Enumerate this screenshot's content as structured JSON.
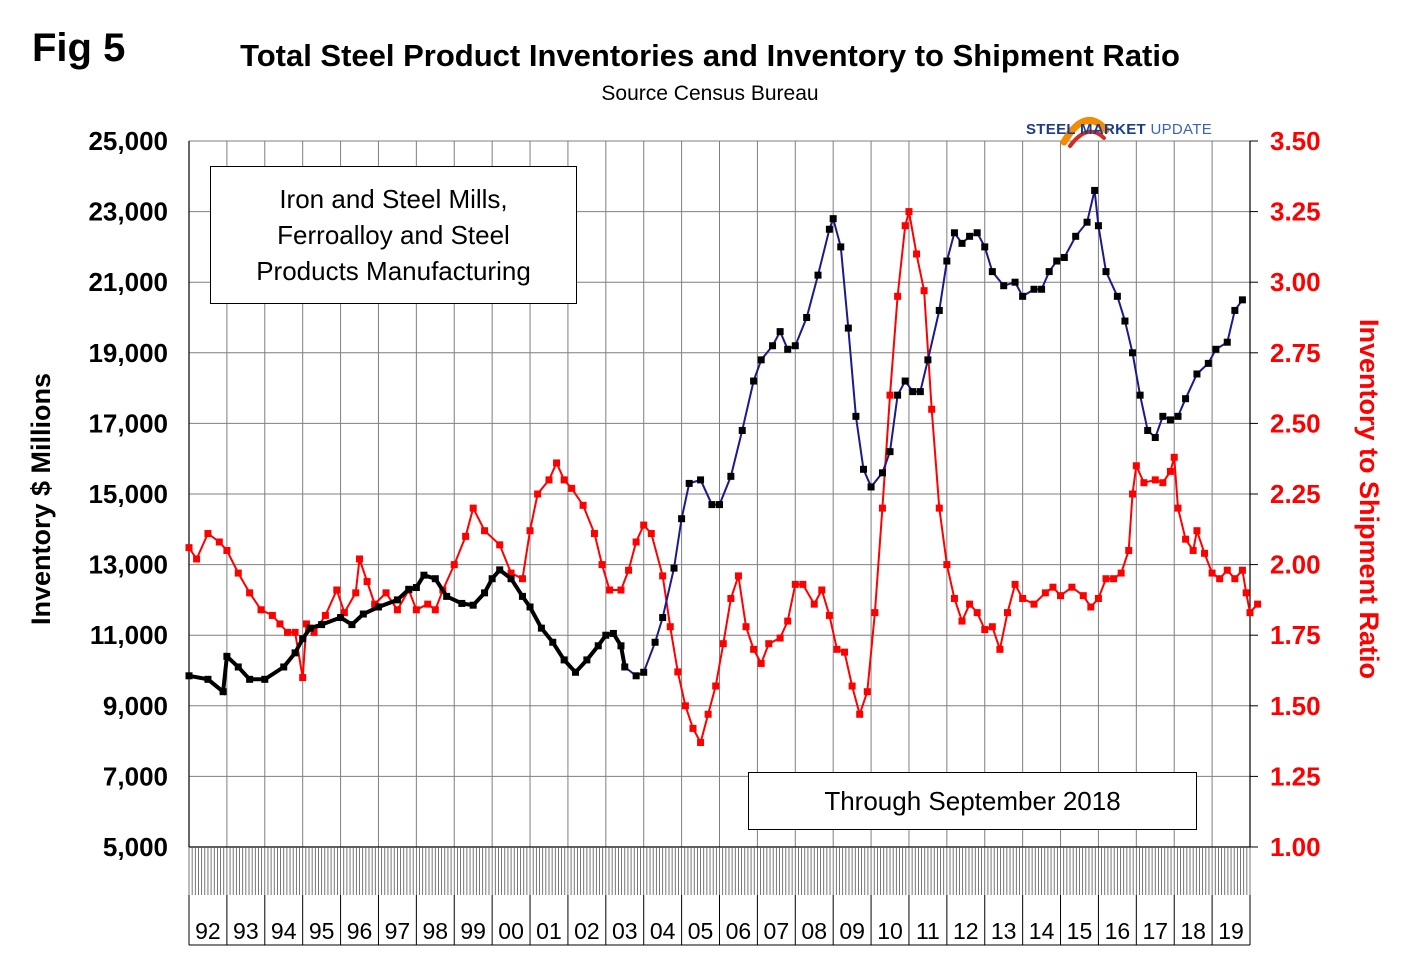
{
  "header": {
    "fig_label": "Fig 5",
    "title": "Total Steel Product Inventories and Inventory to Shipment Ratio",
    "subtitle": "Source Census Bureau",
    "logo_bold": "STEEL MARKET",
    "logo_light": "UPDATE"
  },
  "notes": {
    "description_lines": [
      "Iron and Steel Mills,",
      "Ferroalloy and Steel",
      "Products Manufacturing"
    ],
    "through": "Through September 2018"
  },
  "colors": {
    "inventory_early": "#000000",
    "inventory_late": "#000000",
    "inventory_line_late": "#1a1a8c",
    "ratio": "#ff0000",
    "grid": "#7f7f7f"
  },
  "chart_data": {
    "type": "line",
    "title": "Total Steel Product Inventories and Inventory to Shipment Ratio",
    "subtitle": "Source Census Bureau",
    "xlabel": "",
    "x_tick_labels": [
      "92",
      "93",
      "94",
      "95",
      "96",
      "97",
      "98",
      "99",
      "00",
      "01",
      "02",
      "03",
      "04",
      "05",
      "06",
      "07",
      "08",
      "09",
      "10",
      "11",
      "12",
      "13",
      "14",
      "15",
      "16",
      "17",
      "18",
      "19"
    ],
    "x_range": [
      1992.0,
      2020.0
    ],
    "y_left": {
      "label": "Inventory $ Millions",
      "range": [
        5000,
        25000
      ],
      "ticks": [
        5000,
        7000,
        9000,
        11000,
        13000,
        15000,
        17000,
        19000,
        21000,
        23000,
        25000
      ],
      "tick_labels": [
        "5,000",
        "7,000",
        "9,000",
        "11,000",
        "13,000",
        "15,000",
        "17,000",
        "19,000",
        "21,000",
        "23,000",
        "25,000"
      ]
    },
    "y_right": {
      "label": "Inventory to Shipment Ratio",
      "range": [
        1.0,
        3.5
      ],
      "ticks": [
        1.0,
        1.25,
        1.5,
        1.75,
        2.0,
        2.25,
        2.5,
        2.75,
        3.0,
        3.25,
        3.5
      ],
      "tick_labels": [
        "1.00",
        "1.25",
        "1.50",
        "1.75",
        "2.00",
        "2.25",
        "2.50",
        "2.75",
        "3.00",
        "3.25",
        "3.50"
      ]
    },
    "grid": true,
    "series": [
      {
        "axis": "left",
        "marker": "square",
        "points": [
          [
            1992.0,
            9850
          ],
          [
            1992.5,
            9750
          ],
          [
            1992.9,
            9400
          ],
          [
            1993.0,
            10400
          ],
          [
            1993.3,
            10100
          ],
          [
            1993.6,
            9750
          ],
          [
            1994.0,
            9750
          ],
          [
            1994.5,
            10100
          ],
          [
            1994.8,
            10500
          ],
          [
            1995.0,
            10900
          ],
          [
            1995.2,
            11200
          ],
          [
            1995.5,
            11300
          ],
          [
            1996.0,
            11500
          ],
          [
            1996.3,
            11300
          ],
          [
            1996.6,
            11600
          ],
          [
            1997.0,
            11800
          ],
          [
            1997.5,
            12000
          ],
          [
            1997.8,
            12300
          ],
          [
            1998.0,
            12350
          ],
          [
            1998.2,
            12700
          ],
          [
            1998.5,
            12600
          ],
          [
            1998.8,
            12100
          ],
          [
            1999.2,
            11900
          ],
          [
            1999.5,
            11850
          ],
          [
            1999.8,
            12200
          ],
          [
            2000.0,
            12600
          ],
          [
            2000.2,
            12850
          ],
          [
            2000.5,
            12600
          ],
          [
            2000.8,
            12100
          ],
          [
            2001.0,
            11800
          ],
          [
            2001.3,
            11200
          ],
          [
            2001.6,
            10800
          ],
          [
            2001.9,
            10300
          ],
          [
            2002.2,
            9950
          ],
          [
            2002.5,
            10300
          ],
          [
            2002.8,
            10700
          ],
          [
            2003.0,
            11000
          ],
          [
            2003.2,
            11050
          ],
          [
            2003.4,
            10700
          ],
          [
            2003.5,
            10100
          ],
          [
            2003.8,
            9850
          ],
          [
            2004.0,
            9950
          ],
          [
            2004.3,
            10800
          ],
          [
            2004.5,
            11500
          ],
          [
            2004.8,
            12900
          ],
          [
            2005.0,
            14300
          ],
          [
            2005.2,
            15300
          ],
          [
            2005.5,
            15400
          ],
          [
            2005.8,
            14700
          ],
          [
            2006.0,
            14700
          ],
          [
            2006.3,
            15500
          ],
          [
            2006.6,
            16800
          ],
          [
            2006.9,
            18200
          ],
          [
            2007.1,
            18800
          ],
          [
            2007.4,
            19200
          ],
          [
            2007.6,
            19600
          ],
          [
            2007.8,
            19100
          ],
          [
            2008.0,
            19200
          ],
          [
            2008.3,
            20000
          ],
          [
            2008.6,
            21200
          ],
          [
            2008.9,
            22500
          ],
          [
            2009.0,
            22800
          ],
          [
            2009.2,
            22000
          ],
          [
            2009.4,
            19700
          ],
          [
            2009.6,
            17200
          ],
          [
            2009.8,
            15700
          ],
          [
            2010.0,
            15200
          ],
          [
            2010.3,
            15600
          ],
          [
            2010.5,
            16200
          ],
          [
            2010.7,
            17800
          ],
          [
            2010.9,
            18200
          ],
          [
            2011.1,
            17900
          ],
          [
            2011.3,
            17900
          ],
          [
            2011.5,
            18800
          ],
          [
            2011.8,
            20200
          ],
          [
            2012.0,
            21600
          ],
          [
            2012.2,
            22400
          ],
          [
            2012.4,
            22100
          ],
          [
            2012.6,
            22300
          ],
          [
            2012.8,
            22400
          ],
          [
            2013.0,
            22000
          ],
          [
            2013.2,
            21300
          ],
          [
            2013.5,
            20900
          ],
          [
            2013.8,
            21000
          ],
          [
            2014.0,
            20600
          ],
          [
            2014.3,
            20800
          ],
          [
            2014.5,
            20800
          ],
          [
            2014.7,
            21300
          ],
          [
            2014.9,
            21600
          ],
          [
            2015.1,
            21700
          ],
          [
            2015.4,
            22300
          ],
          [
            2015.7,
            22700
          ],
          [
            2015.9,
            23600
          ],
          [
            2016.0,
            22600
          ],
          [
            2016.2,
            21300
          ],
          [
            2016.5,
            20600
          ],
          [
            2016.7,
            19900
          ],
          [
            2016.9,
            19000
          ],
          [
            2017.1,
            17800
          ],
          [
            2017.3,
            16800
          ],
          [
            2017.5,
            16600
          ],
          [
            2017.7,
            17200
          ],
          [
            2017.9,
            17100
          ],
          [
            2018.1,
            17200
          ],
          [
            2018.3,
            17700
          ],
          [
            2018.6,
            18400
          ],
          [
            2018.9,
            18700
          ],
          [
            2019.1,
            19100
          ],
          [
            2019.4,
            19300
          ],
          [
            2019.6,
            20200
          ],
          [
            2019.8,
            20500
          ]
        ]
      },
      {
        "axis": "right",
        "marker": "square",
        "points": [
          [
            1992.0,
            2.06
          ],
          [
            1992.2,
            2.02
          ],
          [
            1992.5,
            2.11
          ],
          [
            1992.8,
            2.08
          ],
          [
            1993.0,
            2.05
          ],
          [
            1993.3,
            1.97
          ],
          [
            1993.6,
            1.9
          ],
          [
            1993.9,
            1.84
          ],
          [
            1994.2,
            1.82
          ],
          [
            1994.4,
            1.79
          ],
          [
            1994.6,
            1.76
          ],
          [
            1994.8,
            1.76
          ],
          [
            1995.0,
            1.6
          ],
          [
            1995.1,
            1.79
          ],
          [
            1995.3,
            1.76
          ],
          [
            1995.6,
            1.82
          ],
          [
            1995.9,
            1.91
          ],
          [
            1996.1,
            1.83
          ],
          [
            1996.4,
            1.9
          ],
          [
            1996.5,
            2.02
          ],
          [
            1996.7,
            1.94
          ],
          [
            1996.9,
            1.86
          ],
          [
            1997.2,
            1.9
          ],
          [
            1997.5,
            1.84
          ],
          [
            1997.8,
            1.91
          ],
          [
            1998.0,
            1.84
          ],
          [
            1998.3,
            1.86
          ],
          [
            1998.5,
            1.84
          ],
          [
            1998.7,
            1.91
          ],
          [
            1999.0,
            2.0
          ],
          [
            1999.3,
            2.1
          ],
          [
            1999.5,
            2.2
          ],
          [
            1999.8,
            2.12
          ],
          [
            2000.2,
            2.07
          ],
          [
            2000.5,
            1.97
          ],
          [
            2000.8,
            1.95
          ],
          [
            2001.0,
            2.12
          ],
          [
            2001.2,
            2.25
          ],
          [
            2001.5,
            2.3
          ],
          [
            2001.7,
            2.36
          ],
          [
            2001.9,
            2.3
          ],
          [
            2002.1,
            2.27
          ],
          [
            2002.4,
            2.21
          ],
          [
            2002.7,
            2.11
          ],
          [
            2002.9,
            2.0
          ],
          [
            2003.1,
            1.91
          ],
          [
            2003.4,
            1.91
          ],
          [
            2003.6,
            1.98
          ],
          [
            2003.8,
            2.08
          ],
          [
            2004.0,
            2.14
          ],
          [
            2004.2,
            2.11
          ],
          [
            2004.5,
            1.96
          ],
          [
            2004.7,
            1.78
          ],
          [
            2004.9,
            1.62
          ],
          [
            2005.1,
            1.5
          ],
          [
            2005.3,
            1.42
          ],
          [
            2005.5,
            1.37
          ],
          [
            2005.7,
            1.47
          ],
          [
            2005.9,
            1.57
          ],
          [
            2006.1,
            1.72
          ],
          [
            2006.3,
            1.88
          ],
          [
            2006.5,
            1.96
          ],
          [
            2006.7,
            1.78
          ],
          [
            2006.9,
            1.7
          ],
          [
            2007.1,
            1.65
          ],
          [
            2007.3,
            1.72
          ],
          [
            2007.6,
            1.74
          ],
          [
            2007.8,
            1.8
          ],
          [
            2008.0,
            1.93
          ],
          [
            2008.2,
            1.93
          ],
          [
            2008.5,
            1.86
          ],
          [
            2008.7,
            1.91
          ],
          [
            2008.9,
            1.82
          ],
          [
            2009.1,
            1.7
          ],
          [
            2009.3,
            1.69
          ],
          [
            2009.5,
            1.57
          ],
          [
            2009.7,
            1.47
          ],
          [
            2009.9,
            1.55
          ],
          [
            2010.1,
            1.83
          ],
          [
            2010.3,
            2.2
          ],
          [
            2010.5,
            2.6
          ],
          [
            2010.7,
            2.95
          ],
          [
            2010.9,
            3.2
          ],
          [
            2011.0,
            3.25
          ],
          [
            2011.2,
            3.1
          ],
          [
            2011.4,
            2.97
          ],
          [
            2011.6,
            2.55
          ],
          [
            2011.8,
            2.2
          ],
          [
            2012.0,
            2.0
          ],
          [
            2012.2,
            1.88
          ],
          [
            2012.4,
            1.8
          ],
          [
            2012.6,
            1.86
          ],
          [
            2012.8,
            1.83
          ],
          [
            2013.0,
            1.77
          ],
          [
            2013.2,
            1.78
          ],
          [
            2013.4,
            1.7
          ],
          [
            2013.6,
            1.83
          ],
          [
            2013.8,
            1.93
          ],
          [
            2014.0,
            1.88
          ],
          [
            2014.3,
            1.86
          ],
          [
            2014.6,
            1.9
          ],
          [
            2014.8,
            1.92
          ],
          [
            2015.0,
            1.89
          ],
          [
            2015.3,
            1.92
          ],
          [
            2015.6,
            1.89
          ],
          [
            2015.8,
            1.85
          ],
          [
            2016.0,
            1.88
          ],
          [
            2016.2,
            1.95
          ],
          [
            2016.4,
            1.95
          ],
          [
            2016.6,
            1.97
          ],
          [
            2016.8,
            2.05
          ],
          [
            2016.9,
            2.25
          ],
          [
            2017.0,
            2.35
          ],
          [
            2017.2,
            2.29
          ],
          [
            2017.5,
            2.3
          ],
          [
            2017.7,
            2.29
          ],
          [
            2017.9,
            2.33
          ],
          [
            2018.0,
            2.38
          ],
          [
            2018.1,
            2.2
          ],
          [
            2018.3,
            2.09
          ],
          [
            2018.5,
            2.05
          ],
          [
            2018.6,
            2.12
          ],
          [
            2018.8,
            2.04
          ],
          [
            2019.0,
            1.97
          ],
          [
            2019.2,
            1.95
          ],
          [
            2019.4,
            1.98
          ],
          [
            2019.6,
            1.95
          ],
          [
            2019.8,
            1.98
          ],
          [
            2019.9,
            1.9
          ],
          [
            2020.0,
            1.83
          ],
          [
            2020.2,
            1.86
          ]
        ]
      }
    ]
  }
}
